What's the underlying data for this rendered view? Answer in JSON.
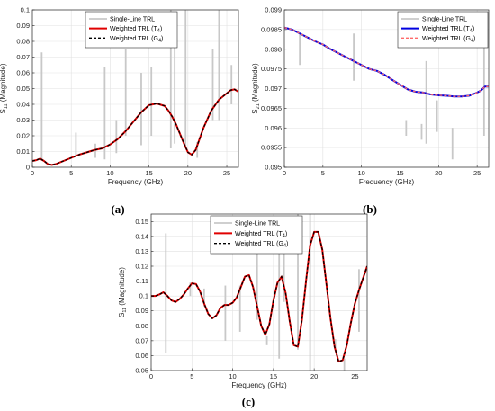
{
  "chart_data": [
    {
      "panel_label": "(a)",
      "type": "line",
      "xlabel": "Frequency (GHz)",
      "ylabel": "S",
      "ylabel_sub": "11",
      "ylabel_suffix": " (Magnitude)",
      "xlim": [
        0,
        26.5
      ],
      "ylim": [
        0,
        0.1
      ],
      "xticks": [
        0,
        5,
        10,
        15,
        20,
        25
      ],
      "xticklabels": [
        "0",
        "5",
        "10",
        "15",
        "20",
        "25"
      ],
      "yticks": [
        0,
        0.01,
        0.02,
        0.03,
        0.04,
        0.05,
        0.06,
        0.07,
        0.08,
        0.09,
        0.1
      ],
      "yticklabels": [
        "0",
        "0.01",
        "0.02",
        "0.03",
        "0.04",
        "0.05",
        "0.06",
        "0.07",
        "0.08",
        "0.09",
        "0.1"
      ],
      "grid": true,
      "legend_position": "top-center",
      "legend": [
        {
          "text": "Single-Line TRL",
          "sub": "",
          "suffix": "",
          "color": "#c8c8c8",
          "dash": "none",
          "width": 1.8
        },
        {
          "text": "Weighted TRL (T",
          "sub": "4",
          "suffix": ")",
          "color": "#e00000",
          "dash": "none",
          "width": 2
        },
        {
          "text": "Weighted TRL (G",
          "sub": "4",
          "suffix": ")",
          "color": "#000000",
          "dash": "3,2",
          "width": 1.4
        }
      ],
      "single_line_color": "#c8c8c8",
      "weighted_color": "#e00000",
      "weighted_g_color": "#000000",
      "weighted_curve": {
        "x": [
          0,
          0.5,
          1,
          1.5,
          2,
          2.5,
          3,
          4,
          5,
          6,
          7,
          8,
          9,
          10,
          11,
          12,
          13,
          14,
          15,
          16,
          17,
          17.5,
          18,
          18.5,
          19,
          19.5,
          20,
          20.5,
          21,
          21.5,
          22,
          23,
          24,
          25,
          25.5,
          26,
          26.5
        ],
        "y": [
          0.004,
          0.0045,
          0.0055,
          0.004,
          0.002,
          0.0015,
          0.002,
          0.004,
          0.006,
          0.008,
          0.0095,
          0.011,
          0.012,
          0.0145,
          0.018,
          0.023,
          0.029,
          0.035,
          0.0395,
          0.0405,
          0.039,
          0.036,
          0.032,
          0.027,
          0.021,
          0.015,
          0.0095,
          0.008,
          0.011,
          0.018,
          0.025,
          0.036,
          0.043,
          0.047,
          0.049,
          0.0495,
          0.048
        ]
      },
      "single_line_spikes": [
        {
          "x": 1.2,
          "y1": 0.004,
          "y2": 0.073
        },
        {
          "x": 5.6,
          "y1": 0.007,
          "y2": 0.022
        },
        {
          "x": 8.1,
          "y1": 0.006,
          "y2": 0.015
        },
        {
          "x": 9.3,
          "y1": 0.005,
          "y2": 0.064
        },
        {
          "x": 10.8,
          "y1": 0.009,
          "y2": 0.03
        },
        {
          "x": 12.0,
          "y1": 0.02,
          "y2": 0.075
        },
        {
          "x": 14.0,
          "y1": 0.014,
          "y2": 0.06
        },
        {
          "x": 15.3,
          "y1": 0.02,
          "y2": 0.064
        },
        {
          "x": 17.8,
          "y1": 0.012,
          "y2": 0.1
        },
        {
          "x": 18.3,
          "y1": 0.015,
          "y2": 0.08
        },
        {
          "x": 19.7,
          "y1": 0.012,
          "y2": 0.1
        },
        {
          "x": 21.2,
          "y1": 0.006,
          "y2": 0.016
        },
        {
          "x": 23.2,
          "y1": 0.03,
          "y2": 0.075
        },
        {
          "x": 24.0,
          "y1": 0.03,
          "y2": 0.1
        },
        {
          "x": 25.6,
          "y1": 0.04,
          "y2": 0.065
        }
      ]
    },
    {
      "panel_label": "(b)",
      "type": "line",
      "xlabel": "Frequency (GHz)",
      "ylabel": "S",
      "ylabel_sub": "21",
      "ylabel_suffix": " (Magnitude)",
      "xlim": [
        0,
        26.5
      ],
      "ylim": [
        0.095,
        0.0985
      ],
      "xticks": [
        0,
        5,
        10,
        15,
        20,
        25
      ],
      "xticklabels": [
        "0",
        "5",
        "10",
        "15",
        "20",
        "25"
      ],
      "yticks": [
        0.095,
        0.0955,
        0.096,
        0.0965,
        0.097,
        0.0975,
        0.098,
        0.0985,
        0.099
      ],
      "yticklabels": [
        "0.095",
        "0.0955",
        "0.096",
        "0.0965",
        "0.097",
        "0.0975",
        "0.098",
        "0.0985",
        "0.099"
      ],
      "ylim_display": [
        0.095,
        0.099
      ],
      "grid": true,
      "legend_position": "top-right",
      "legend": [
        {
          "text": "Single-Line TRL",
          "sub": "",
          "suffix": "",
          "color": "#c8c8c8",
          "dash": "none",
          "width": 1.8
        },
        {
          "text": "Weighted TRL (T",
          "sub": "4",
          "suffix": ")",
          "color": "#0000e0",
          "dash": "none",
          "width": 2
        },
        {
          "text": "Weighted TRL (G",
          "sub": "4",
          "suffix": ")",
          "color": "#ff6a6a",
          "dash": "3,2",
          "width": 1.4
        }
      ],
      "single_line_color": "#c8c8c8",
      "weighted_color": "#0000e0",
      "weighted_g_color": "#ff6a6a",
      "weighted_curve": {
        "x": [
          0,
          1,
          2,
          3,
          4,
          5,
          6,
          7,
          8,
          9,
          10,
          11,
          12,
          13,
          14,
          15,
          16,
          17,
          18,
          19,
          20,
          21,
          22,
          23,
          24,
          25,
          25.5,
          26,
          26.5
        ],
        "y": [
          0.09855,
          0.0985,
          0.0984,
          0.0983,
          0.0982,
          0.09812,
          0.098,
          0.0979,
          0.0978,
          0.0977,
          0.0976,
          0.0975,
          0.09745,
          0.09735,
          0.09722,
          0.0971,
          0.09698,
          0.09692,
          0.0969,
          0.09685,
          0.09683,
          0.09682,
          0.0968,
          0.0968,
          0.09682,
          0.0969,
          0.09695,
          0.09705,
          0.09705
        ]
      },
      "single_line_spikes": [
        {
          "x": 2.0,
          "y1": 0.0976,
          "y2": 0.0984
        },
        {
          "x": 9.0,
          "y1": 0.0972,
          "y2": 0.0984
        },
        {
          "x": 15.8,
          "y1": 0.0958,
          "y2": 0.0962
        },
        {
          "x": 17.8,
          "y1": 0.0957,
          "y2": 0.0961
        },
        {
          "x": 18.4,
          "y1": 0.0956,
          "y2": 0.0977
        },
        {
          "x": 19.8,
          "y1": 0.0959,
          "y2": 0.0967
        },
        {
          "x": 21.8,
          "y1": 0.0952,
          "y2": 0.096
        },
        {
          "x": 25.9,
          "y1": 0.0958,
          "y2": 0.09875
        }
      ]
    },
    {
      "panel_label": "(c)",
      "type": "line",
      "xlabel": "Frequency (GHz)",
      "ylabel": "S",
      "ylabel_sub": "11",
      "ylabel_suffix": " (Magnitude)",
      "xlim": [
        0,
        26.5
      ],
      "ylim": [
        0.05,
        0.155
      ],
      "xticks": [
        0,
        5,
        10,
        15,
        20,
        25
      ],
      "xticklabels": [
        "0",
        "5",
        "10",
        "15",
        "20",
        "25"
      ],
      "yticks": [
        0.05,
        0.06,
        0.07,
        0.08,
        0.09,
        0.1,
        0.11,
        0.12,
        0.13,
        0.14,
        0.15
      ],
      "yticklabels": [
        "0.05",
        "0.06",
        "0.07",
        "0.08",
        "0.09",
        "0.1",
        "0.11",
        "0.12",
        "0.13",
        "0.14",
        "0.15"
      ],
      "grid": true,
      "legend_position": "top-center",
      "legend": [
        {
          "text": "Single-Line TRL",
          "sub": "",
          "suffix": "",
          "color": "#c8c8c8",
          "dash": "none",
          "width": 1.8
        },
        {
          "text": "Weighted TRL (T",
          "sub": "4",
          "suffix": ")",
          "color": "#e00000",
          "dash": "none",
          "width": 2
        },
        {
          "text": "Weighted TRL (G",
          "sub": "4",
          "suffix": ")",
          "color": "#000000",
          "dash": "3,2",
          "width": 1.4
        }
      ],
      "single_line_color": "#c8c8c8",
      "weighted_color": "#e00000",
      "weighted_g_color": "#000000",
      "weighted_curve": {
        "x": [
          0,
          0.5,
          1,
          1.5,
          2,
          2.5,
          3,
          3.5,
          4,
          4.5,
          5,
          5.5,
          6,
          6.5,
          7,
          7.5,
          8,
          8.5,
          9,
          9.5,
          10,
          10.5,
          11,
          11.5,
          12,
          12.5,
          13,
          13.5,
          14,
          14.5,
          15,
          15.5,
          16,
          16.5,
          17,
          17.5,
          18,
          18.5,
          19,
          19.5,
          20,
          20.5,
          21,
          21.5,
          22,
          22.5,
          23,
          23.5,
          24,
          24.5,
          25,
          25.5,
          26,
          26.5
        ],
        "y": [
          0.1,
          0.1,
          0.101,
          0.1025,
          0.1,
          0.097,
          0.096,
          0.098,
          0.101,
          0.105,
          0.1085,
          0.108,
          0.103,
          0.095,
          0.088,
          0.085,
          0.087,
          0.092,
          0.094,
          0.094,
          0.0955,
          0.099,
          0.106,
          0.113,
          0.114,
          0.106,
          0.093,
          0.08,
          0.074,
          0.081,
          0.097,
          0.109,
          0.113,
          0.102,
          0.083,
          0.067,
          0.066,
          0.084,
          0.11,
          0.134,
          0.143,
          0.143,
          0.131,
          0.108,
          0.085,
          0.066,
          0.056,
          0.057,
          0.067,
          0.082,
          0.095,
          0.104,
          0.112,
          0.12
        ]
      },
      "single_line_spikes": [
        {
          "x": 1.8,
          "y1": 0.062,
          "y2": 0.142
        },
        {
          "x": 4.8,
          "y1": 0.1,
          "y2": 0.109
        },
        {
          "x": 6.5,
          "y1": 0.093,
          "y2": 0.105
        },
        {
          "x": 9.1,
          "y1": 0.07,
          "y2": 0.107
        },
        {
          "x": 10.9,
          "y1": 0.076,
          "y2": 0.107
        },
        {
          "x": 13.0,
          "y1": 0.084,
          "y2": 0.137
        },
        {
          "x": 14.2,
          "y1": 0.067,
          "y2": 0.073
        },
        {
          "x": 15.7,
          "y1": 0.058,
          "y2": 0.135
        },
        {
          "x": 16.3,
          "y1": 0.096,
          "y2": 0.135
        },
        {
          "x": 18.0,
          "y1": 0.064,
          "y2": 0.155
        },
        {
          "x": 19.5,
          "y1": 0.05,
          "y2": 0.155
        },
        {
          "x": 22.6,
          "y1": 0.065,
          "y2": 0.071
        },
        {
          "x": 23.7,
          "y1": 0.05,
          "y2": 0.058
        },
        {
          "x": 25.5,
          "y1": 0.076,
          "y2": 0.118
        }
      ]
    }
  ]
}
